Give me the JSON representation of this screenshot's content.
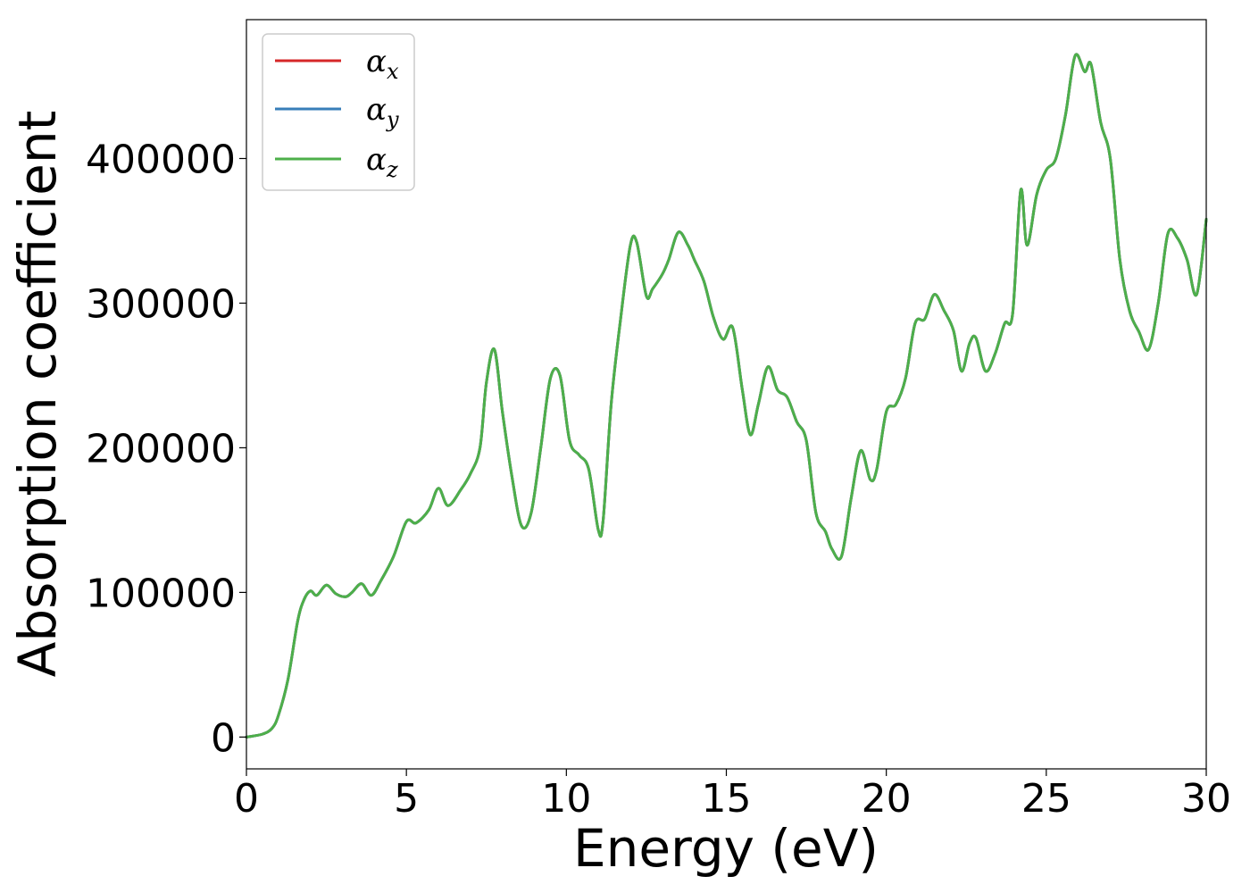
{
  "chart_data": {
    "type": "line",
    "title": "",
    "xlabel": "Energy (eV)",
    "ylabel": "Absorption coefficient",
    "xlim": [
      0,
      30
    ],
    "ylim": [
      -22000,
      496000
    ],
    "xticks": [
      0,
      5,
      10,
      15,
      20,
      25,
      30
    ],
    "xtick_labels": [
      "0",
      "5",
      "10",
      "15",
      "20",
      "25",
      "30"
    ],
    "yticks": [
      0,
      100000,
      200000,
      300000,
      400000
    ],
    "ytick_labels": [
      "0",
      "100000",
      "200000",
      "300000",
      "400000"
    ],
    "grid": false,
    "legend_position": "upper-left",
    "x": [
      0,
      0.5,
      0.8,
      1.0,
      1.3,
      1.6,
      1.8,
      2.0,
      2.2,
      2.5,
      2.8,
      3.1,
      3.3,
      3.6,
      3.9,
      4.2,
      4.6,
      5.0,
      5.3,
      5.7,
      6.0,
      6.3,
      6.7,
      7.0,
      7.3,
      7.5,
      7.75,
      8.0,
      8.3,
      8.6,
      8.9,
      9.2,
      9.5,
      9.8,
      10.1,
      10.4,
      10.7,
      11.0,
      11.15,
      11.4,
      11.7,
      12.0,
      12.2,
      12.5,
      12.7,
      13.0,
      13.2,
      13.5,
      13.8,
      14.0,
      14.3,
      14.6,
      14.9,
      15.2,
      15.5,
      15.75,
      16.0,
      16.3,
      16.6,
      16.9,
      17.2,
      17.5,
      17.8,
      18.1,
      18.3,
      18.6,
      18.9,
      19.2,
      19.5,
      19.7,
      20.0,
      20.3,
      20.6,
      20.9,
      21.2,
      21.5,
      21.8,
      22.1,
      22.35,
      22.6,
      22.8,
      23.1,
      23.4,
      23.7,
      23.95,
      24.2,
      24.4,
      24.7,
      25.0,
      25.3,
      25.6,
      25.9,
      26.2,
      26.4,
      26.7,
      27.0,
      27.3,
      27.6,
      27.9,
      28.2,
      28.5,
      28.8,
      29.1,
      29.4,
      29.7,
      30.0
    ],
    "series": [
      {
        "name": "α_x",
        "color": "#d62728",
        "values": [
          0,
          2000,
          6000,
          15000,
          40000,
          80000,
          95000,
          101000,
          98000,
          105000,
          99000,
          97000,
          100000,
          106000,
          98000,
          108000,
          125000,
          149000,
          148000,
          157000,
          172000,
          160000,
          171000,
          182000,
          200000,
          245000,
          268000,
          225000,
          180000,
          146000,
          155000,
          200000,
          248000,
          250000,
          205000,
          195000,
          185000,
          143000,
          150000,
          230000,
          290000,
          340000,
          342000,
          305000,
          310000,
          320000,
          330000,
          349000,
          340000,
          330000,
          315000,
          290000,
          275000,
          283000,
          240000,
          209000,
          230000,
          256000,
          240000,
          235000,
          218000,
          205000,
          155000,
          142000,
          130000,
          125000,
          165000,
          198000,
          178000,
          185000,
          225000,
          230000,
          248000,
          286000,
          289000,
          306000,
          295000,
          281000,
          253000,
          272000,
          276000,
          253000,
          265000,
          286000,
          293000,
          378000,
          340000,
          375000,
          392000,
          400000,
          430000,
          471000,
          460000,
          465000,
          425000,
          400000,
          330000,
          295000,
          280000,
          268000,
          300000,
          348000,
          345000,
          330000,
          306000,
          358000
        ]
      },
      {
        "name": "α_y",
        "color": "#377eb8",
        "values": [
          0,
          2000,
          6000,
          15000,
          40000,
          80000,
          95000,
          101000,
          98000,
          105000,
          99000,
          97000,
          100000,
          106000,
          98000,
          108000,
          125000,
          149000,
          148000,
          157000,
          172000,
          160000,
          171000,
          182000,
          200000,
          245000,
          268000,
          225000,
          180000,
          146000,
          155000,
          200000,
          248000,
          250000,
          205000,
          195000,
          185000,
          143000,
          150000,
          230000,
          290000,
          340000,
          342000,
          305000,
          310000,
          320000,
          330000,
          349000,
          340000,
          330000,
          315000,
          290000,
          275000,
          283000,
          240000,
          209000,
          230000,
          256000,
          240000,
          235000,
          218000,
          205000,
          155000,
          142000,
          130000,
          125000,
          165000,
          198000,
          178000,
          185000,
          225000,
          230000,
          248000,
          286000,
          289000,
          306000,
          295000,
          281000,
          253000,
          272000,
          276000,
          253000,
          265000,
          286000,
          293000,
          378000,
          340000,
          375000,
          392000,
          400000,
          430000,
          471000,
          460000,
          465000,
          425000,
          400000,
          330000,
          295000,
          280000,
          268000,
          300000,
          348000,
          345000,
          330000,
          306000,
          358000
        ]
      },
      {
        "name": "α_z",
        "color": "#4daf4a",
        "values": [
          0,
          2000,
          6000,
          15000,
          40000,
          80000,
          95000,
          101000,
          98000,
          105000,
          99000,
          97000,
          100000,
          106000,
          98000,
          108000,
          125000,
          149000,
          148000,
          157000,
          172000,
          160000,
          171000,
          182000,
          200000,
          245000,
          268000,
          225000,
          180000,
          146000,
          155000,
          200000,
          248000,
          250000,
          205000,
          195000,
          185000,
          143000,
          150000,
          230000,
          290000,
          340000,
          342000,
          305000,
          310000,
          320000,
          330000,
          349000,
          340000,
          330000,
          315000,
          290000,
          275000,
          283000,
          240000,
          209000,
          230000,
          256000,
          240000,
          235000,
          218000,
          205000,
          155000,
          142000,
          130000,
          125000,
          165000,
          198000,
          178000,
          185000,
          225000,
          230000,
          248000,
          286000,
          289000,
          306000,
          295000,
          281000,
          253000,
          272000,
          276000,
          253000,
          265000,
          286000,
          293000,
          378000,
          340000,
          375000,
          392000,
          400000,
          430000,
          471000,
          460000,
          465000,
          425000,
          400000,
          330000,
          295000,
          280000,
          268000,
          300000,
          348000,
          345000,
          330000,
          306000,
          358000
        ]
      }
    ],
    "legend": [
      {
        "symbol": "α",
        "sub": "x"
      },
      {
        "symbol": "α",
        "sub": "y"
      },
      {
        "symbol": "α",
        "sub": "z"
      }
    ]
  }
}
